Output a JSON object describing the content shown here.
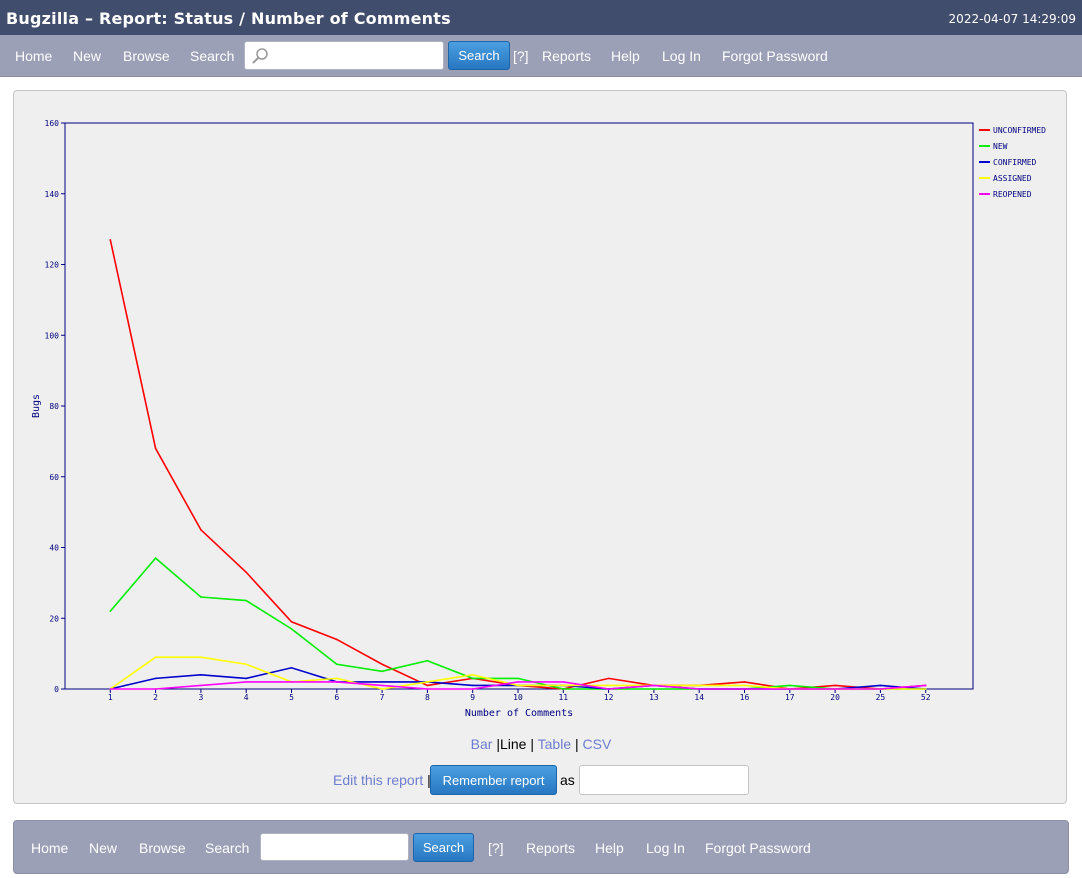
{
  "header": {
    "title": "Bugzilla – Report: Status / Number of Comments",
    "timestamp": "2022-04-07 14:29:09"
  },
  "nav": {
    "home": "Home",
    "new": "New",
    "browse": "Browse",
    "search": "Search",
    "search_button": "Search",
    "help_q": "[?]",
    "reports": "Reports",
    "help": "Help",
    "login": "Log In",
    "forgot": "Forgot Password"
  },
  "report_links": {
    "bar": "Bar",
    "sep1": " |",
    "line": "Line",
    "sep2": " | ",
    "table": "Table",
    "sep3": " | ",
    "csv": "CSV",
    "edit": "Edit this report",
    "edit_sep": " |",
    "remember": "Remember report",
    "as": "as"
  },
  "colors": {
    "accent": "#404d6c",
    "nav": "#9ba0b6",
    "axis": "#000080",
    "button": "#2f83cc"
  },
  "chart_data": {
    "type": "line",
    "xlabel": "Number of Comments",
    "ylabel": "Bugs",
    "categories": [
      "1",
      "2",
      "3",
      "4",
      "5",
      "6",
      "7",
      "8",
      "9",
      "10",
      "11",
      "12",
      "13",
      "14",
      "16",
      "17",
      "20",
      "25",
      "52"
    ],
    "ylim": [
      0,
      160
    ],
    "yticks": [
      0,
      20,
      40,
      60,
      80,
      100,
      120,
      140,
      160
    ],
    "legend_position": "right",
    "series": [
      {
        "name": "UNCONFIRMED",
        "color": "#ff0000",
        "values": [
          127,
          68,
          45,
          33,
          19,
          14,
          7,
          1,
          3,
          1,
          0,
          3,
          1,
          1,
          2,
          0,
          1,
          0,
          1
        ]
      },
      {
        "name": "NEW",
        "color": "#00ee00",
        "values": [
          22,
          37,
          26,
          25,
          17,
          7,
          5,
          8,
          3,
          3,
          0,
          0,
          0,
          0,
          0,
          1,
          0,
          0,
          0
        ]
      },
      {
        "name": "CONFIRMED",
        "color": "#0000cc",
        "values": [
          0,
          3,
          4,
          3,
          6,
          2,
          2,
          2,
          1,
          1,
          1,
          0,
          1,
          0,
          0,
          0,
          0,
          1,
          0
        ]
      },
      {
        "name": "ASSIGNED",
        "color": "#ffff00",
        "values": [
          0,
          9,
          9,
          7,
          2,
          3,
          0,
          2,
          4,
          1,
          1,
          1,
          1,
          1,
          1,
          0,
          0,
          0,
          0
        ]
      },
      {
        "name": "REOPENED",
        "color": "#ff00ff",
        "values": [
          0,
          0,
          1,
          2,
          2,
          2,
          1,
          0,
          0,
          2,
          2,
          0,
          1,
          0,
          0,
          0,
          0,
          0,
          1
        ]
      }
    ]
  }
}
